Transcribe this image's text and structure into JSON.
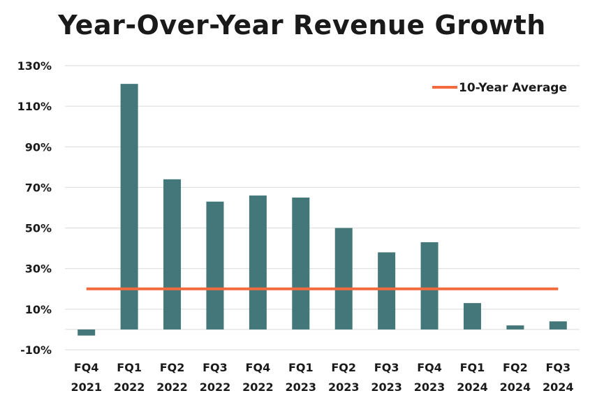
{
  "chart_data": {
    "type": "bar",
    "title": "Year-Over-Year Revenue Growth",
    "categories": [
      [
        "FQ4",
        "2021"
      ],
      [
        "FQ1",
        "2022"
      ],
      [
        "FQ2",
        "2022"
      ],
      [
        "FQ3",
        "2022"
      ],
      [
        "FQ4",
        "2022"
      ],
      [
        "FQ1",
        "2023"
      ],
      [
        "FQ2",
        "2023"
      ],
      [
        "FQ3",
        "2023"
      ],
      [
        "FQ4",
        "2023"
      ],
      [
        "FQ1",
        "2024"
      ],
      [
        "FQ2",
        "2024"
      ],
      [
        "FQ3",
        "2024"
      ]
    ],
    "series": [
      {
        "values": [
          -3,
          121,
          74,
          63,
          66,
          65,
          50,
          38,
          43,
          13,
          2,
          4
        ],
        "color": "#43777a"
      }
    ],
    "reference_line": {
      "name": "10-Year Average",
      "value": 20,
      "color": "#f26a3d"
    },
    "y_ticks": [
      -10,
      10,
      30,
      50,
      70,
      90,
      110,
      130
    ],
    "y_tick_labels": [
      "-10%",
      "10%",
      "30%",
      "50%",
      "70%",
      "90%",
      "110%",
      "130%"
    ],
    "ylim": [
      -10,
      130
    ],
    "xlabel": "",
    "ylabel": "",
    "grid": true,
    "legend_position": "top-right"
  }
}
